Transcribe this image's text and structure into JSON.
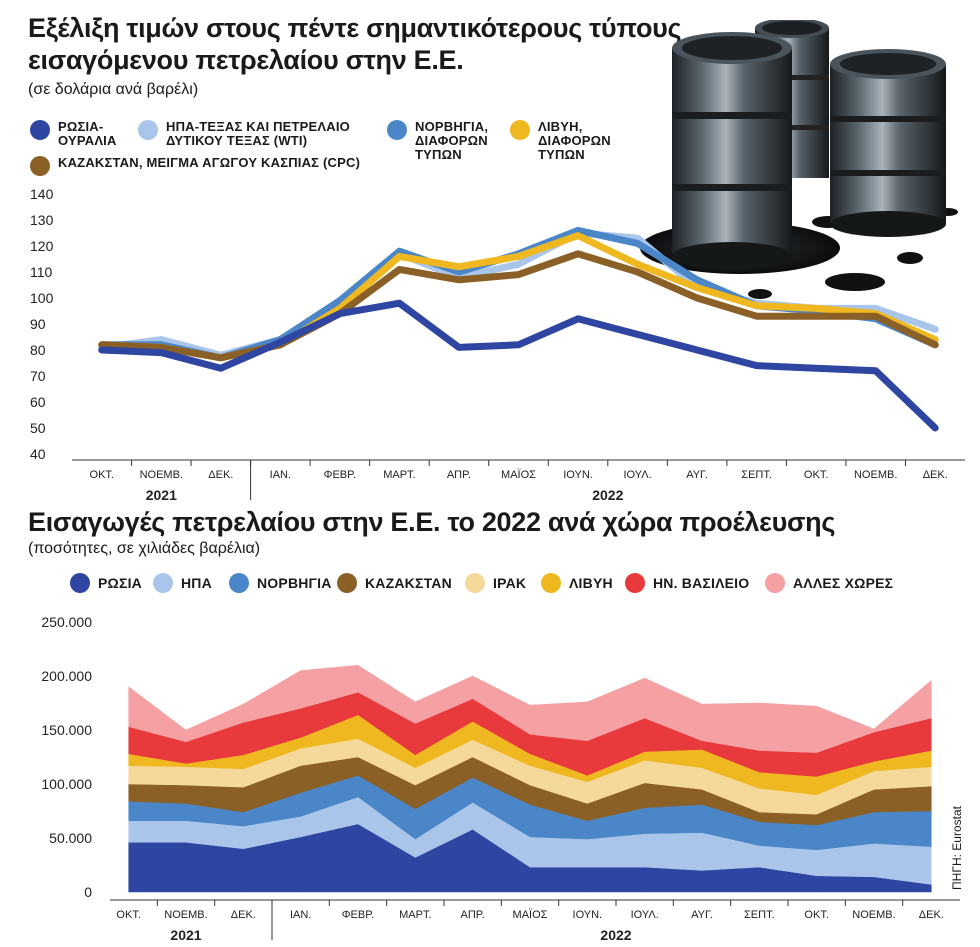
{
  "chart_data": [
    {
      "type": "line",
      "title": "Εξέλιξη τιμών στους πέντε σημαντικότερους τύπους εισαγόμενου πετρελαίου στην Ε.Ε.",
      "subtitle": "(σε δολάρια ανά βαρέλι)",
      "categories": [
        "ΟΚΤ.",
        "ΝΟΕΜΒ.",
        "ΔΕΚ.",
        "ΙΑΝ.",
        "ΦΕΒΡ.",
        "ΜΑΡΤ.",
        "ΑΠΡ.",
        "ΜΑΪΟΣ",
        "ΙΟΥΝ.",
        "ΙΟΥΛ.",
        "ΑΥΓ.",
        "ΣΕΠΤ.",
        "ΟΚΤ.",
        "ΝΟΕΜΒ.",
        "ΔΕΚ."
      ],
      "years": [
        {
          "label": "2021",
          "from": 0,
          "to": 2
        },
        {
          "label": "2022",
          "from": 3,
          "to": 14
        }
      ],
      "yticks": [
        40,
        50,
        60,
        70,
        80,
        90,
        100,
        110,
        120,
        130,
        140
      ],
      "ylim": [
        40,
        140
      ],
      "grid": false,
      "legend_position": "top",
      "series": [
        {
          "name": "ΗΠΑ-ΤΕΞΑΣ ΚΑΙ ΠΕΤΡΕΛΑΙΟ ΔΥΤΙΚΟΥ ΤΕΞΑΣ (WTI)",
          "color": "#a9c6ea",
          "values": [
            81,
            84,
            78,
            84,
            97,
            117,
            108,
            113,
            125,
            123,
            104,
            98,
            96,
            96,
            88
          ]
        },
        {
          "name": "ΝΟΡΒΗΓΙΑ, ΔΙΑΦΟΡΩΝ ΤΥΠΩΝ",
          "color": "#4a86c8",
          "values": [
            82,
            82,
            77,
            84,
            99,
            118,
            110,
            117,
            126,
            121,
            107,
            97,
            95,
            92,
            82
          ]
        },
        {
          "name": "ΛΙΒΥΗ, ΔΙΑΦΟΡΩΝ ΤΥΠΩΝ",
          "color": "#f0b820",
          "values": [
            82,
            81,
            77,
            82,
            96,
            116,
            112,
            116,
            124,
            113,
            104,
            97,
            96,
            94,
            84
          ]
        },
        {
          "name": "ΚΑΖΑΚΣΤΑΝ, ΜΕΙΓΜΑ ΑΓΩΓΟΥ ΚΑΣΠΙΑΣ (CPC)",
          "color": "#8b6026",
          "values": [
            82,
            81,
            77,
            82,
            94,
            111,
            107,
            109,
            117,
            110,
            100,
            93,
            93,
            93,
            82
          ]
        },
        {
          "name": "ΡΩΣΙΑ-ΟΥΡΑΛΙΑ",
          "color": "#2e45a2",
          "values": [
            80,
            79,
            73,
            83,
            94,
            98,
            81,
            82,
            92,
            86,
            80,
            74,
            73,
            72,
            50
          ]
        }
      ],
      "legend": [
        {
          "label": "ΡΩΣΙΑ-\nΟΥΡΑΛΙΑ",
          "color": "#2e45a2"
        },
        {
          "label": "ΗΠΑ-ΤΕΞΑΣ ΚΑΙ ΠΕΤΡΕΛΑΙΟ\nΔΥΤΙΚΟΥ ΤΕΞΑΣ (WTI)",
          "color": "#a9c6ea"
        },
        {
          "label": "ΝΟΡΒΗΓΙΑ,\nΔΙΑΦΟΡΩΝ\nΤΥΠΩΝ",
          "color": "#4a86c8"
        },
        {
          "label": "ΛΙΒΥΗ,\nΔΙΑΦΟΡΩΝ\nΤΥΠΩΝ",
          "color": "#f0b820"
        },
        {
          "label": "ΚΑΖΑΚΣΤΑΝ, ΜΕΙΓΜΑ ΑΓΩΓΟΥ ΚΑΣΠΙΑΣ (CPC)",
          "color": "#8b6026"
        }
      ]
    },
    {
      "type": "area",
      "stacked": true,
      "title": "Εισαγωγές πετρελαίου στην Ε.Ε. το 2022 ανά χώρα προέλευσης",
      "subtitle": "(ποσότητες, σε χιλιάδες βαρέλια)",
      "categories": [
        "ΟΚΤ.",
        "ΝΟΕΜΒ.",
        "ΔΕΚ.",
        "ΙΑΝ.",
        "ΦΕΒΡ.",
        "ΜΑΡΤ.",
        "ΑΠΡ.",
        "ΜΑΪΟΣ",
        "ΙΟΥΝ.",
        "ΙΟΥΛ.",
        "ΑΥΓ.",
        "ΣΕΠΤ.",
        "ΟΚΤ.",
        "ΝΟΕΜΒ.",
        "ΔΕΚ."
      ],
      "years": [
        {
          "label": "2021",
          "from": 0,
          "to": 2
        },
        {
          "label": "2022",
          "from": 3,
          "to": 14
        }
      ],
      "yticks": [
        "0",
        "50.000",
        "100.000",
        "150.000",
        "200.000",
        "250.000"
      ],
      "ylim": [
        0,
        250000
      ],
      "grid": false,
      "legend_position": "top",
      "series": [
        {
          "name": "ΡΩΣΙΑ",
          "color": "#2e45a2",
          "values": [
            46000,
            46000,
            40000,
            51000,
            63000,
            32000,
            58000,
            23000,
            23000,
            23000,
            20000,
            23000,
            15000,
            14000,
            7000
          ]
        },
        {
          "name": "ΗΠΑ",
          "color": "#a9c6ea",
          "values": [
            20000,
            20000,
            21000,
            19000,
            25000,
            17000,
            25000,
            28000,
            26000,
            31000,
            35000,
            20000,
            24000,
            31000,
            35000
          ]
        },
        {
          "name": "ΝΟΡΒΗΓΙΑ",
          "color": "#4a86c8",
          "values": [
            18000,
            16000,
            13000,
            22000,
            20000,
            28000,
            23000,
            30000,
            17000,
            24000,
            26000,
            22000,
            23000,
            29000,
            33000
          ]
        },
        {
          "name": "ΚΑΖΑΚΣΤΑΝ",
          "color": "#8b6026",
          "values": [
            16000,
            17000,
            23000,
            25000,
            17000,
            22000,
            19000,
            18000,
            16000,
            23000,
            14000,
            9000,
            10000,
            21000,
            23000
          ]
        },
        {
          "name": "ΙΡΑΚ",
          "color": "#f5d99a",
          "values": [
            17000,
            17000,
            17000,
            16000,
            17000,
            16000,
            16000,
            18000,
            20000,
            21000,
            20000,
            22000,
            18000,
            17000,
            18000
          ]
        },
        {
          "name": "ΛΙΒΥΗ",
          "color": "#f0b820",
          "values": [
            11000,
            3000,
            13000,
            10000,
            22000,
            12000,
            17000,
            11000,
            6000,
            8000,
            17000,
            15000,
            17000,
            9000,
            15000
          ]
        },
        {
          "name": "ΗΝ. ΒΑΣΙΛΕΙΟ",
          "color": "#e8393d",
          "values": [
            25000,
            20000,
            30000,
            27000,
            21000,
            29000,
            21000,
            18000,
            32000,
            31000,
            8000,
            20000,
            22000,
            27000,
            30000
          ]
        },
        {
          "name": "ΑΛΛΕΣ ΧΩΡΕΣ",
          "color": "#f5a0a2",
          "values": [
            37000,
            11000,
            17000,
            35000,
            25000,
            20000,
            21000,
            27000,
            36000,
            37000,
            34000,
            44000,
            43000,
            3000,
            35000
          ]
        }
      ]
    }
  ],
  "source": "ΠΗΓΗ: Eurostat"
}
